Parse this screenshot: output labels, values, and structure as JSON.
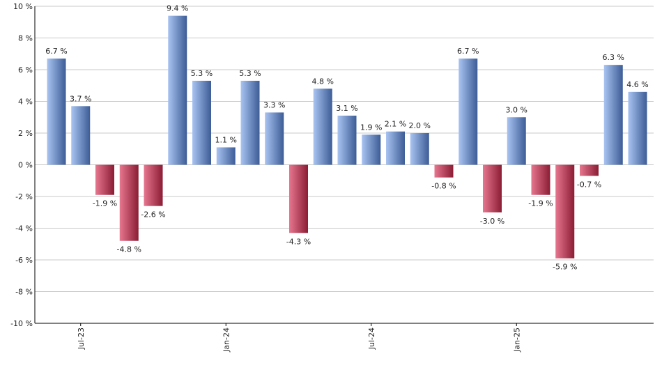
{
  "chart_data": {
    "type": "bar",
    "title": "",
    "xlabel": "",
    "ylabel": "",
    "ylim": [
      -10,
      10
    ],
    "y_ticks": [
      -10,
      -8,
      -6,
      -4,
      -2,
      0,
      2,
      4,
      6,
      8,
      10
    ],
    "y_tick_suffix": " %",
    "grid": true,
    "value_label_suffix": " %",
    "colors": {
      "positive_light": "#a9c4f2",
      "positive_dark": "#3d5c96",
      "negative_light": "#e7768f",
      "negative_dark": "#8a1c34",
      "grid": "#c8c8c8",
      "axis": "#000000"
    },
    "x_tick_labels": [
      {
        "index": 1,
        "label": "Jul-23"
      },
      {
        "index": 7,
        "label": "Jan-24"
      },
      {
        "index": 13,
        "label": "Jul-24"
      },
      {
        "index": 19,
        "label": "Jan-25"
      }
    ],
    "values": [
      6.7,
      3.7,
      -1.9,
      -4.8,
      -2.6,
      9.4,
      5.3,
      1.1,
      5.3,
      3.3,
      -4.3,
      4.8,
      3.1,
      1.9,
      2.1,
      2.0,
      -0.8,
      6.7,
      -3.0,
      3.0,
      -1.9,
      -5.9,
      -0.7,
      6.3,
      4.6
    ]
  }
}
